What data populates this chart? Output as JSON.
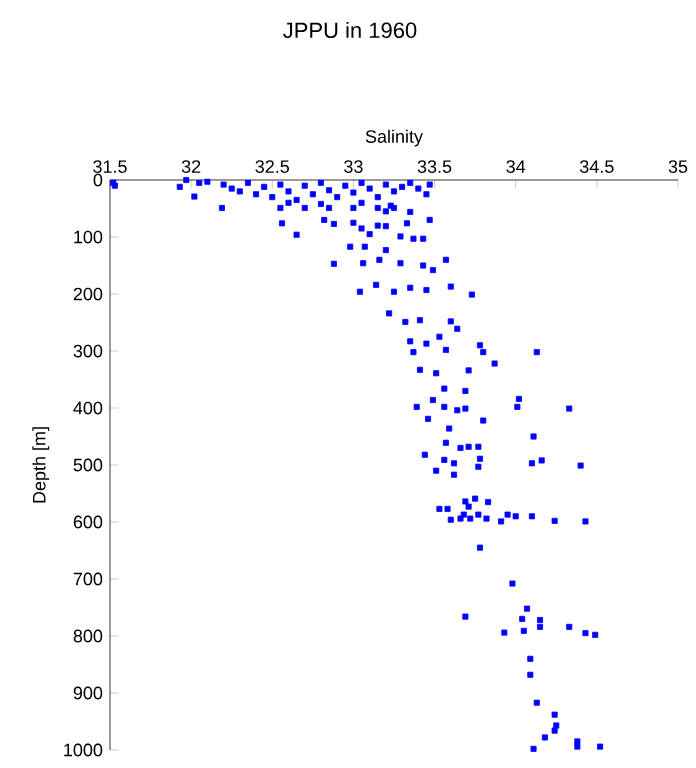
{
  "chart_data": {
    "type": "scatter",
    "title": "JPPU in 1960",
    "xlabel": "Salinity",
    "ylabel": "Depth [m]",
    "xlim": [
      31.5,
      35
    ],
    "xticks": [
      31.5,
      32,
      32.5,
      33,
      33.5,
      34,
      34.5,
      35
    ],
    "ylim": [
      1000,
      0
    ],
    "yticks": [
      0,
      100,
      200,
      300,
      400,
      500,
      600,
      700,
      800,
      900,
      1000
    ],
    "marker": "square",
    "color": "#0000ff",
    "x": [
      31.52,
      31.53,
      31.97,
      31.93,
      32.02,
      32.05,
      32.1,
      32.2,
      32.19,
      32.25,
      32.3,
      32.35,
      32.4,
      32.45,
      32.5,
      32.55,
      32.6,
      32.65,
      32.7,
      32.75,
      32.8,
      32.85,
      32.9,
      32.95,
      33.0,
      33.05,
      33.1,
      33.15,
      33.2,
      33.25,
      33.3,
      33.35,
      33.4,
      33.45,
      33.47,
      32.55,
      32.7,
      32.85,
      33.0,
      33.15,
      33.25,
      32.6,
      32.8,
      33.05,
      33.2,
      33.35,
      33.23,
      32.56,
      32.65,
      32.82,
      32.88,
      33.0,
      33.05,
      33.1,
      33.15,
      33.2,
      33.33,
      33.47,
      32.98,
      33.07,
      33.2,
      33.29,
      33.37,
      33.43,
      32.88,
      33.06,
      33.16,
      33.29,
      33.43,
      33.57,
      33.49,
      33.04,
      33.14,
      33.25,
      33.35,
      33.45,
      33.6,
      33.73,
      33.22,
      33.32,
      33.41,
      33.6,
      33.64,
      33.35,
      33.45,
      33.53,
      33.37,
      33.57,
      33.78,
      33.8,
      34.13,
      33.41,
      33.51,
      33.71,
      33.87,
      33.56,
      33.69,
      33.49,
      33.39,
      33.56,
      33.64,
      33.69,
      34.02,
      34.01,
      34.33,
      33.46,
      33.59,
      33.8,
      34.11,
      33.57,
      33.66,
      33.71,
      33.44,
      33.56,
      33.62,
      33.77,
      33.78,
      33.77,
      33.51,
      33.62,
      34.1,
      34.16,
      34.4,
      33.69,
      33.75,
      33.83,
      33.53,
      33.58,
      33.71,
      33.77,
      33.68,
      33.6,
      33.66,
      33.72,
      33.82,
      33.95,
      34.0,
      34.1,
      33.91,
      34.24,
      34.43,
      33.78,
      33.98,
      34.07,
      33.69,
      34.04,
      34.15,
      33.93,
      34.05,
      34.15,
      34.33,
      34.43,
      34.49,
      34.09,
      34.09,
      34.13,
      34.24,
      34.25,
      34.24,
      34.18,
      34.11,
      34.38,
      34.38,
      34.52
    ],
    "values": [
      5,
      10,
      0,
      12,
      29,
      5,
      3,
      8,
      49,
      15,
      20,
      5,
      25,
      12,
      30,
      8,
      20,
      35,
      10,
      25,
      5,
      18,
      30,
      10,
      22,
      5,
      15,
      30,
      8,
      20,
      12,
      5,
      15,
      25,
      8,
      49,
      49,
      49,
      49,
      49,
      49,
      40,
      42,
      40,
      55,
      56,
      45,
      76,
      96,
      70,
      77,
      75,
      85,
      95,
      80,
      81,
      76,
      70,
      117,
      117,
      123,
      99,
      103,
      103,
      147,
      146,
      140,
      146,
      150,
      140,
      158,
      196,
      184,
      196,
      189,
      193,
      187,
      201,
      234,
      249,
      246,
      248,
      261,
      283,
      287,
      275,
      302,
      298,
      290,
      302,
      302,
      333,
      339,
      334,
      322,
      366,
      370,
      386,
      398,
      398,
      404,
      401,
      384,
      398,
      401,
      419,
      436,
      422,
      450,
      461,
      470,
      468,
      482,
      491,
      497,
      468,
      489,
      503,
      510,
      517,
      497,
      492,
      501,
      564,
      559,
      565,
      577,
      577,
      573,
      587,
      587,
      596,
      594,
      594,
      594,
      587,
      590,
      590,
      599,
      598,
      599,
      645,
      708,
      752,
      766,
      770,
      772,
      794,
      791,
      784,
      784,
      795,
      798,
      840,
      868,
      917,
      938,
      957,
      966,
      978,
      998,
      985,
      994,
      994
    ]
  }
}
